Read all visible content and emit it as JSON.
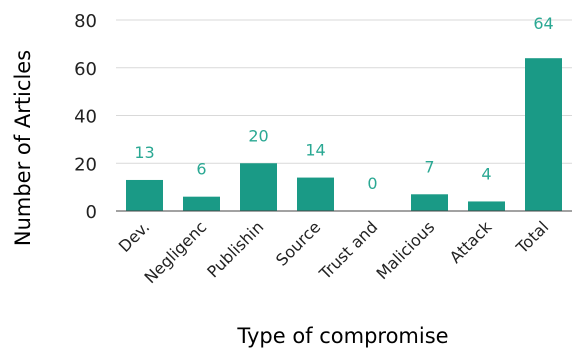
{
  "chart_data": {
    "type": "bar",
    "title": "",
    "xlabel": "Type of compromise",
    "ylabel": "Number of Articles",
    "categories": [
      "Dev.",
      "Negligenc",
      "Publishin",
      "Source",
      "Trust and",
      "Malicious",
      "Attack",
      "Total"
    ],
    "values": [
      13,
      6,
      20,
      14,
      0,
      7,
      4,
      64
    ],
    "ylim": [
      0,
      80
    ],
    "yticks": [
      0,
      20,
      40,
      60,
      80
    ],
    "grid": true,
    "legend": "none",
    "colors": {
      "bar": "#1a9a86",
      "data_label": "#2aa893",
      "grid": "#d9d9d9",
      "axis": "#444444",
      "text": "#222222"
    }
  }
}
